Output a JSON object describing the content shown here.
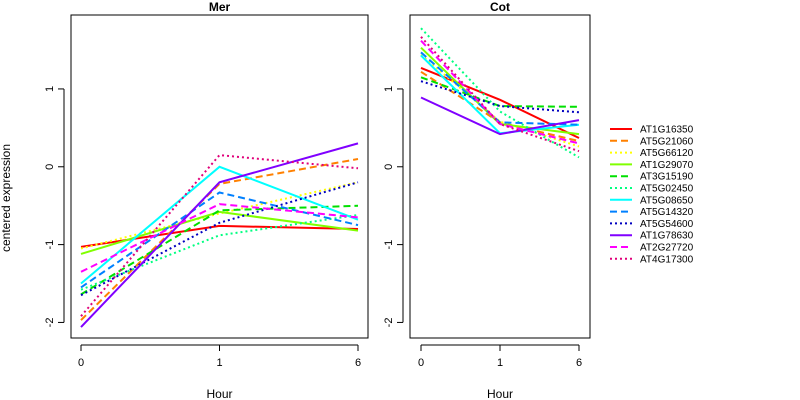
{
  "chart_data": {
    "type": "line",
    "ylabel": "centered expression",
    "legend_position": "right",
    "series": [
      {
        "name": "AT1G16350",
        "color": "#FF0000",
        "dash": "solid"
      },
      {
        "name": "AT5G21060",
        "color": "#FF8000",
        "dash": "dashed"
      },
      {
        "name": "AT5G66120",
        "color": "#FFFF00",
        "dash": "dotted"
      },
      {
        "name": "AT1G29070",
        "color": "#80FF00",
        "dash": "solid"
      },
      {
        "name": "AT3G15190",
        "color": "#00E000",
        "dash": "dashed"
      },
      {
        "name": "AT5G02450",
        "color": "#00FF80",
        "dash": "dotted"
      },
      {
        "name": "AT5G08650",
        "color": "#00FFFF",
        "dash": "solid"
      },
      {
        "name": "AT5G14320",
        "color": "#0080FF",
        "dash": "dashed"
      },
      {
        "name": "AT5G54600",
        "color": "#0000C0",
        "dash": "dotted"
      },
      {
        "name": "AT1G78630",
        "color": "#8000FF",
        "dash": "solid"
      },
      {
        "name": "AT2G27720",
        "color": "#FF00FF",
        "dash": "dashed"
      },
      {
        "name": "AT4G17300",
        "color": "#E0007A",
        "dash": "dotted"
      }
    ],
    "panels": [
      {
        "title": "Mer",
        "xlabel": "Hour",
        "x": [
          "0",
          "1",
          "6"
        ],
        "ylim": [
          -2.2,
          1.95
        ],
        "yticks": [
          -2,
          -1,
          0,
          1
        ],
        "values": [
          [
            -1.03,
            -0.76,
            -0.8
          ],
          [
            -1.97,
            -0.22,
            0.1
          ],
          [
            -1.05,
            -0.6,
            -0.2
          ],
          [
            -1.12,
            -0.58,
            -0.82
          ],
          [
            -1.64,
            -0.56,
            -0.5
          ],
          [
            -1.58,
            -0.88,
            -0.62
          ],
          [
            -1.5,
            0.0,
            -0.68
          ],
          [
            -1.55,
            -0.33,
            -0.75
          ],
          [
            -1.65,
            -0.72,
            -0.2
          ],
          [
            -2.06,
            -0.2,
            0.3
          ],
          [
            -1.35,
            -0.48,
            -0.65
          ],
          [
            -1.92,
            0.15,
            -0.02
          ]
        ]
      },
      {
        "title": "Cot",
        "xlabel": "Hour",
        "x": [
          "0",
          "1",
          "6"
        ],
        "ylim": [
          -2.2,
          1.95
        ],
        "yticks": [
          -2,
          -1,
          0,
          1
        ],
        "values": [
          [
            1.27,
            0.86,
            0.37
          ],
          [
            1.22,
            0.57,
            0.33
          ],
          [
            1.44,
            0.58,
            0.26
          ],
          [
            1.53,
            0.55,
            0.42
          ],
          [
            1.15,
            0.78,
            0.77
          ],
          [
            1.78,
            0.71,
            0.12
          ],
          [
            1.43,
            0.43,
            0.54
          ],
          [
            1.47,
            0.57,
            0.54
          ],
          [
            1.1,
            0.78,
            0.7
          ],
          [
            0.89,
            0.42,
            0.6
          ],
          [
            1.62,
            0.55,
            0.3
          ],
          [
            1.67,
            0.55,
            0.2
          ]
        ]
      }
    ]
  }
}
